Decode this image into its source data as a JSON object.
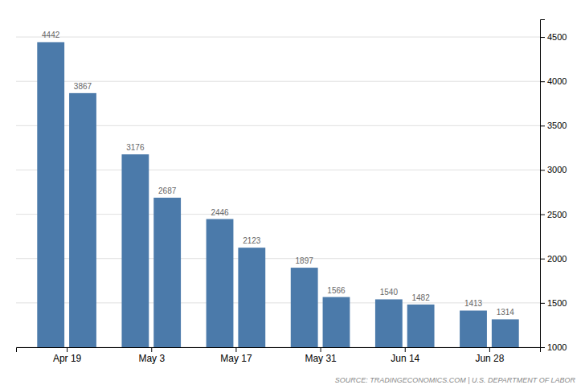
{
  "chart_data": {
    "type": "bar",
    "categories": [
      "Apr 19",
      null,
      "May 3",
      null,
      "May 17",
      null,
      "May 31",
      null,
      "Jun 14",
      null,
      "Jun 28",
      null
    ],
    "values": [
      4442,
      3867,
      3176,
      2687,
      2446,
      2123,
      1897,
      1566,
      1540,
      1482,
      1413,
      1314
    ],
    "color": "#4b7aaa",
    "ylim": [
      1000,
      4700
    ],
    "yticks": [
      1000,
      1500,
      2000,
      2500,
      3000,
      3500,
      4000,
      4500
    ],
    "grid": true,
    "data_labels": true,
    "annotations": [
      "SOURCE: TRADINGECONOMICS.COM | U.S. DEPARTMENT OF LABOR"
    ]
  }
}
